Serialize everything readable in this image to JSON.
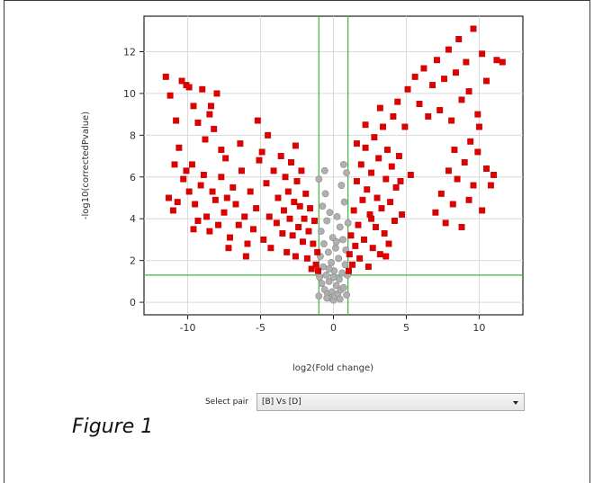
{
  "figure": {
    "caption": "Figure 1"
  },
  "chart_data": {
    "type": "scatter",
    "title": "",
    "xlabel": "log2(Fold change)",
    "ylabel": "-log10(correctedPvalue)",
    "xlim": [
      -13,
      13
    ],
    "ylim": [
      -0.6,
      13.7
    ],
    "xticks": [
      -10,
      -5,
      0,
      5,
      10
    ],
    "yticks": [
      0,
      2,
      4,
      6,
      8,
      10,
      12
    ],
    "grid": true,
    "thresholds": {
      "log2_fold_change": [
        -1,
        1
      ],
      "neg_log10_p": 1.3
    },
    "colors": {
      "significant": "#e00000",
      "not_significant": "#b0b0b0",
      "threshold_lines": "#3cb43c",
      "grid": "#d9d9d9"
    },
    "series": [
      {
        "status": "significant",
        "color": "#e00000",
        "points": [
          [
            -11.5,
            10.8
          ],
          [
            -11.2,
            9.9
          ],
          [
            -10.8,
            8.7
          ],
          [
            -10.4,
            10.6
          ],
          [
            -10.1,
            10.4
          ],
          [
            -9.9,
            10.3
          ],
          [
            -9.6,
            9.4
          ],
          [
            -9.3,
            8.6
          ],
          [
            -9.0,
            10.2
          ],
          [
            -8.8,
            7.8
          ],
          [
            -8.5,
            9.0
          ],
          [
            -8.2,
            8.3
          ],
          [
            -8.0,
            10.0
          ],
          [
            -7.7,
            7.3
          ],
          [
            -7.4,
            6.9
          ],
          [
            -11.3,
            5.0
          ],
          [
            -11.0,
            4.4
          ],
          [
            -10.9,
            6.6
          ],
          [
            -10.6,
            7.4
          ],
          [
            -10.3,
            5.9
          ],
          [
            -10.1,
            6.3
          ],
          [
            -9.9,
            5.3
          ],
          [
            -9.7,
            6.6
          ],
          [
            -9.5,
            4.7
          ],
          [
            -9.3,
            3.9
          ],
          [
            -9.1,
            5.6
          ],
          [
            -8.9,
            6.1
          ],
          [
            -8.7,
            4.1
          ],
          [
            -8.5,
            3.4
          ],
          [
            -8.3,
            5.3
          ],
          [
            -8.1,
            4.9
          ],
          [
            -7.9,
            3.7
          ],
          [
            -7.7,
            6.0
          ],
          [
            -7.5,
            4.3
          ],
          [
            -7.3,
            5.0
          ],
          [
            -7.1,
            3.1
          ],
          [
            -6.9,
            5.5
          ],
          [
            -6.7,
            4.7
          ],
          [
            -6.5,
            3.7
          ],
          [
            -6.3,
            6.3
          ],
          [
            -6.1,
            4.1
          ],
          [
            -5.9,
            2.8
          ],
          [
            -5.7,
            5.3
          ],
          [
            -5.5,
            3.5
          ],
          [
            -5.3,
            4.5
          ],
          [
            -5.1,
            6.8
          ],
          [
            -4.9,
            7.2
          ],
          [
            -4.8,
            3.0
          ],
          [
            -4.6,
            5.7
          ],
          [
            -4.4,
            4.1
          ],
          [
            -4.3,
            2.6
          ],
          [
            -4.1,
            6.3
          ],
          [
            -3.9,
            3.8
          ],
          [
            -3.8,
            5.0
          ],
          [
            -3.6,
            7.0
          ],
          [
            -3.5,
            3.3
          ],
          [
            -3.4,
            4.4
          ],
          [
            -3.3,
            6.0
          ],
          [
            -3.2,
            2.4
          ],
          [
            -3.1,
            5.3
          ],
          [
            -3.0,
            4.0
          ],
          [
            -2.9,
            6.7
          ],
          [
            -2.8,
            3.2
          ],
          [
            -2.7,
            4.8
          ],
          [
            -2.6,
            2.2
          ],
          [
            -2.5,
            5.8
          ],
          [
            -2.4,
            3.6
          ],
          [
            -2.3,
            4.6
          ],
          [
            -2.2,
            6.3
          ],
          [
            -2.1,
            2.9
          ],
          [
            -2.0,
            4.0
          ],
          [
            -1.9,
            5.2
          ],
          [
            -1.8,
            2.1
          ],
          [
            -1.7,
            3.4
          ],
          [
            -1.6,
            4.5
          ],
          [
            -1.5,
            1.6
          ],
          [
            -1.4,
            2.8
          ],
          [
            -1.3,
            3.9
          ],
          [
            -1.2,
            1.8
          ],
          [
            -1.1,
            2.4
          ],
          [
            -1.05,
            1.5
          ],
          [
            -5.2,
            8.7
          ],
          [
            -6.4,
            7.6
          ],
          [
            -8.4,
            9.4
          ],
          [
            -10.7,
            4.8
          ],
          [
            -9.6,
            3.5
          ],
          [
            -7.2,
            2.6
          ],
          [
            -6.0,
            2.2
          ],
          [
            -4.5,
            8.0
          ],
          [
            -2.6,
            7.5
          ],
          [
            1.05,
            1.5
          ],
          [
            1.1,
            2.3
          ],
          [
            1.2,
            3.2
          ],
          [
            1.3,
            1.8
          ],
          [
            1.4,
            4.4
          ],
          [
            1.5,
            2.7
          ],
          [
            1.6,
            5.8
          ],
          [
            1.7,
            3.7
          ],
          [
            1.8,
            2.1
          ],
          [
            1.9,
            6.6
          ],
          [
            2.0,
            4.9
          ],
          [
            2.1,
            3.0
          ],
          [
            2.2,
            7.4
          ],
          [
            2.3,
            5.4
          ],
          [
            2.4,
            1.7
          ],
          [
            2.5,
            4.2
          ],
          [
            2.6,
            6.2
          ],
          [
            2.7,
            2.6
          ],
          [
            2.8,
            7.9
          ],
          [
            2.9,
            3.6
          ],
          [
            3.0,
            5.0
          ],
          [
            3.1,
            6.9
          ],
          [
            3.2,
            2.3
          ],
          [
            3.3,
            4.5
          ],
          [
            3.4,
            8.4
          ],
          [
            3.5,
            3.3
          ],
          [
            3.6,
            5.9
          ],
          [
            3.7,
            7.3
          ],
          [
            3.8,
            2.8
          ],
          [
            3.9,
            4.8
          ],
          [
            4.0,
            6.5
          ],
          [
            4.1,
            8.9
          ],
          [
            4.2,
            3.9
          ],
          [
            4.3,
            5.5
          ],
          [
            4.4,
            9.6
          ],
          [
            4.5,
            7.0
          ],
          [
            4.7,
            4.2
          ],
          [
            4.9,
            8.4
          ],
          [
            5.1,
            10.2
          ],
          [
            5.3,
            6.1
          ],
          [
            5.6,
            10.8
          ],
          [
            5.9,
            9.5
          ],
          [
            6.2,
            11.2
          ],
          [
            6.5,
            8.9
          ],
          [
            6.8,
            10.4
          ],
          [
            7.1,
            11.6
          ],
          [
            7.3,
            9.2
          ],
          [
            7.6,
            10.7
          ],
          [
            7.9,
            12.1
          ],
          [
            8.1,
            8.7
          ],
          [
            8.4,
            11.0
          ],
          [
            8.6,
            12.6
          ],
          [
            8.8,
            9.7
          ],
          [
            9.1,
            11.5
          ],
          [
            9.3,
            10.1
          ],
          [
            9.6,
            13.1
          ],
          [
            9.9,
            9.0
          ],
          [
            10.2,
            11.9
          ],
          [
            10.5,
            10.6
          ],
          [
            11.2,
            11.6
          ],
          [
            11.6,
            11.5
          ],
          [
            7.0,
            4.3
          ],
          [
            7.4,
            5.2
          ],
          [
            7.7,
            3.8
          ],
          [
            7.9,
            6.3
          ],
          [
            8.2,
            4.7
          ],
          [
            8.5,
            5.9
          ],
          [
            8.8,
            3.6
          ],
          [
            9.0,
            6.7
          ],
          [
            9.3,
            4.9
          ],
          [
            9.6,
            5.6
          ],
          [
            9.9,
            7.2
          ],
          [
            10.2,
            4.4
          ],
          [
            10.5,
            6.4
          ],
          [
            10.8,
            5.6
          ],
          [
            11.0,
            6.1
          ],
          [
            8.3,
            7.3
          ],
          [
            9.4,
            7.7
          ],
          [
            10.0,
            8.4
          ],
          [
            2.2,
            8.5
          ],
          [
            3.2,
            9.3
          ],
          [
            1.6,
            7.6
          ],
          [
            2.6,
            4.0
          ],
          [
            3.6,
            2.2
          ],
          [
            4.6,
            5.8
          ]
        ]
      },
      {
        "status": "not_significant",
        "color": "#b0b0b0",
        "points": [
          [
            -0.95,
            1.2
          ],
          [
            -0.9,
            2.2
          ],
          [
            -0.85,
            3.4
          ],
          [
            -0.8,
            0.9
          ],
          [
            -0.75,
            4.6
          ],
          [
            -0.7,
            1.7
          ],
          [
            -0.65,
            2.8
          ],
          [
            -0.6,
            0.6
          ],
          [
            -0.55,
            5.2
          ],
          [
            -0.5,
            1.3
          ],
          [
            -0.45,
            3.9
          ],
          [
            -0.4,
            0.4
          ],
          [
            -0.35,
            2.4
          ],
          [
            -0.3,
            1.0
          ],
          [
            -0.25,
            4.3
          ],
          [
            -0.2,
            0.2
          ],
          [
            -0.15,
            1.9
          ],
          [
            -0.1,
            0.5
          ],
          [
            -0.05,
            3.1
          ],
          [
            0.0,
            0.1
          ],
          [
            0.05,
            1.5
          ],
          [
            0.1,
            0.3
          ],
          [
            0.15,
            2.6
          ],
          [
            0.2,
            0.8
          ],
          [
            0.25,
            4.1
          ],
          [
            0.3,
            0.4
          ],
          [
            0.35,
            2.1
          ],
          [
            0.4,
            1.1
          ],
          [
            0.45,
            3.6
          ],
          [
            0.5,
            0.6
          ],
          [
            0.55,
            5.6
          ],
          [
            0.6,
            1.4
          ],
          [
            0.65,
            3.0
          ],
          [
            0.7,
            0.7
          ],
          [
            0.75,
            4.8
          ],
          [
            0.8,
            1.8
          ],
          [
            0.85,
            2.5
          ],
          [
            0.9,
            6.2
          ],
          [
            0.95,
            1.3
          ],
          [
            1.0,
            3.8
          ],
          [
            -1.0,
            5.9
          ],
          [
            -1.0,
            0.3
          ],
          [
            -0.6,
            6.3
          ],
          [
            0.7,
            6.6
          ],
          [
            0.2,
            2.9
          ],
          [
            -0.3,
            1.6
          ],
          [
            0.0,
            1.2
          ],
          [
            0.45,
            0.15
          ],
          [
            -0.45,
            0.2
          ],
          [
            0.9,
            0.35
          ]
        ]
      }
    ]
  },
  "controls": {
    "select_label": "Select pair",
    "selected_pair": "[B] Vs [D]"
  }
}
